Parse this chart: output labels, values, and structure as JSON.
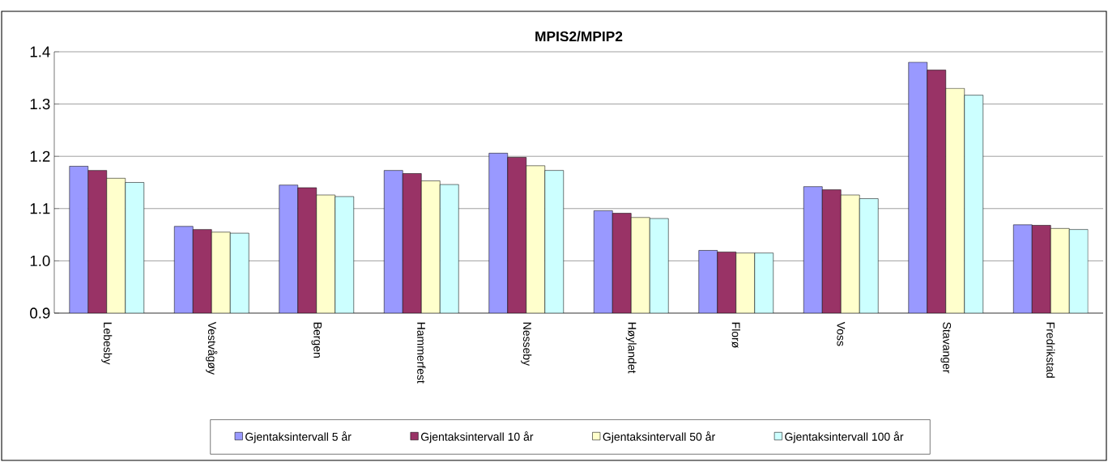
{
  "chart_data": {
    "type": "bar",
    "title": "MPIS2/MPIP2",
    "categories": [
      "Lebesby",
      "Vestvågøy",
      "Bergen",
      "Hammerfest",
      "Nesseby",
      "Høylandet",
      "Florø",
      "Voss",
      "Stavanger",
      "Fredrikstad"
    ],
    "series": [
      {
        "name": "Gjentaksintervall 5 år",
        "color": "#9999ff",
        "values": [
          1.181,
          1.066,
          1.145,
          1.173,
          1.206,
          1.096,
          1.02,
          1.142,
          1.38,
          1.069
        ]
      },
      {
        "name": "Gjentaksintervall 10 år",
        "color": "#993366",
        "values": [
          1.173,
          1.06,
          1.14,
          1.167,
          1.198,
          1.091,
          1.017,
          1.136,
          1.365,
          1.068
        ]
      },
      {
        "name": "Gjentaksintervall 50 år",
        "color": "#ffffcc",
        "values": [
          1.158,
          1.055,
          1.126,
          1.153,
          1.182,
          1.083,
          1.015,
          1.126,
          1.33,
          1.062
        ]
      },
      {
        "name": "Gjentaksintervall 100 år",
        "color": "#ccffff",
        "values": [
          1.15,
          1.053,
          1.123,
          1.146,
          1.173,
          1.081,
          1.015,
          1.119,
          1.317,
          1.06
        ]
      }
    ],
    "ylim": [
      0.9,
      1.4
    ],
    "yticks": [
      0.9,
      {
        "value": 1.0,
        "label": "1.0"
      },
      1.1,
      1.2,
      1.3,
      1.4
    ],
    "grid": "y",
    "legend": "bottom"
  }
}
